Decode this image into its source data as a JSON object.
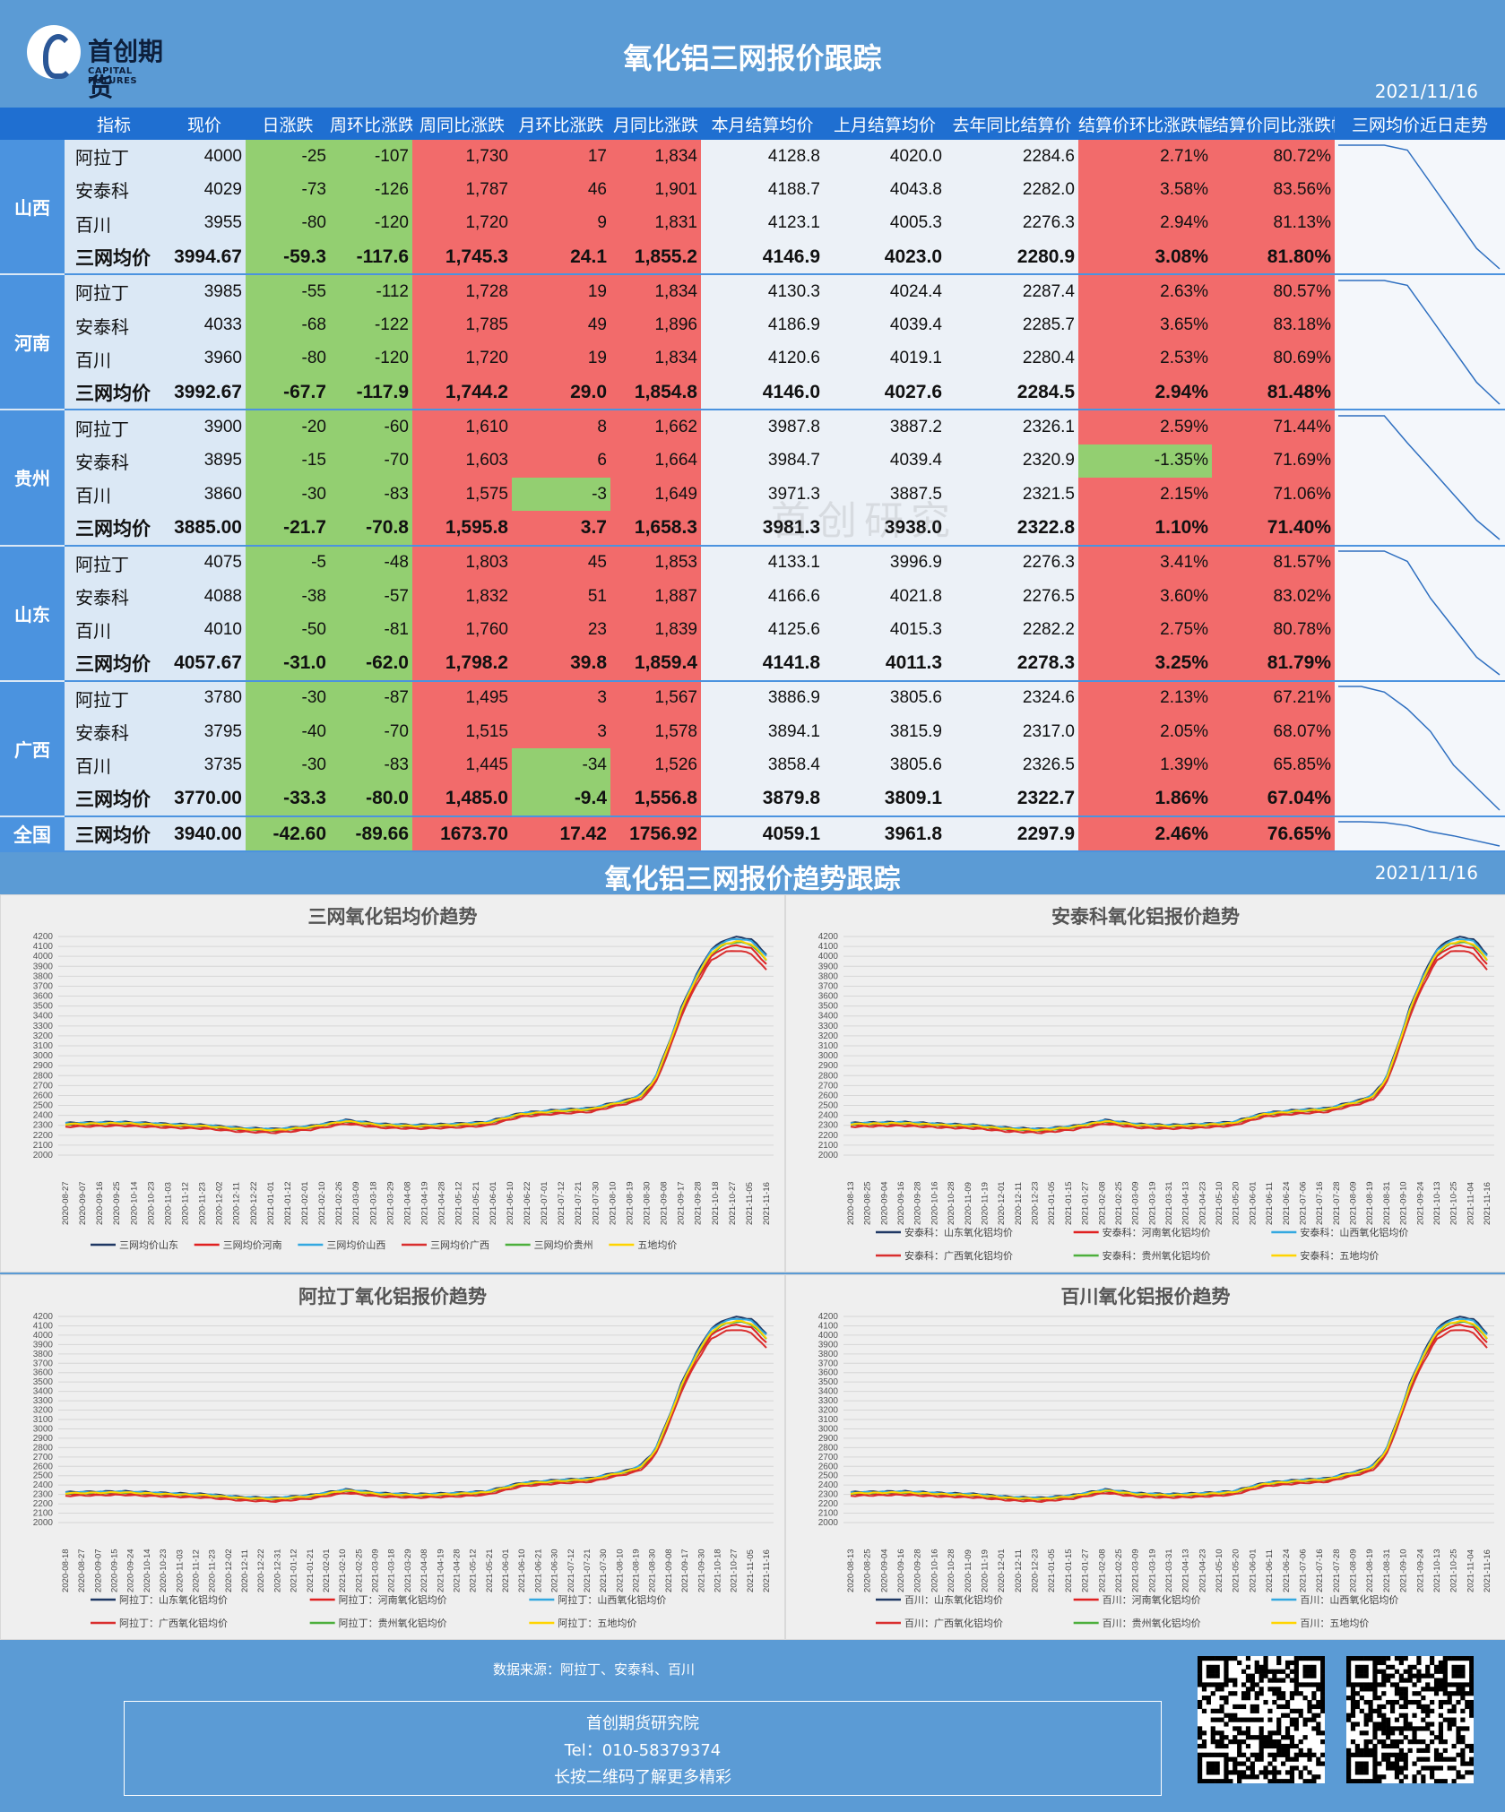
{
  "header": {
    "logo_cn": "首创期货",
    "logo_en": "CAPITAL FUTURES",
    "title": "氧化铝三网报价跟踪",
    "date": "2021/11/16"
  },
  "table": {
    "columns": [
      "指标",
      "现价",
      "日涨跌",
      "周环比涨跌",
      "周同比涨跌",
      "月环比涨跌",
      "月同比涨跌",
      "本月结算均价",
      "上月结算均价",
      "去年同比结算价",
      "结算价环比涨跌幅",
      "结算价同比涨跌幅",
      "三网均价近日走势"
    ],
    "provinces": [
      {
        "name": "山西",
        "rows": [
          [
            "阿拉丁",
            "4000",
            "-25",
            "-107",
            "1,730",
            "17",
            "1,834",
            "4128.8",
            "4020.0",
            "2284.6",
            "2.71%",
            "80.72%"
          ],
          [
            "安泰科",
            "4029",
            "-73",
            "-126",
            "1,787",
            "46",
            "1,901",
            "4188.7",
            "4043.8",
            "2282.0",
            "3.58%",
            "83.56%"
          ],
          [
            "百川",
            "3955",
            "-80",
            "-120",
            "1,720",
            "9",
            "1,831",
            "4123.1",
            "4005.3",
            "2276.3",
            "2.94%",
            "81.13%"
          ],
          [
            "三网均价",
            "3994.67",
            "-59.3",
            "-117.6",
            "1,745.3",
            "24.1",
            "1,855.2",
            "4146.9",
            "4023.0",
            "2280.9",
            "3.08%",
            "81.80%"
          ]
        ]
      },
      {
        "name": "河南",
        "rows": [
          [
            "阿拉丁",
            "3985",
            "-55",
            "-112",
            "1,728",
            "19",
            "1,834",
            "4130.3",
            "4024.4",
            "2287.4",
            "2.63%",
            "80.57%"
          ],
          [
            "安泰科",
            "4033",
            "-68",
            "-122",
            "1,785",
            "49",
            "1,896",
            "4186.9",
            "4039.4",
            "2285.7",
            "3.65%",
            "83.18%"
          ],
          [
            "百川",
            "3960",
            "-80",
            "-120",
            "1,720",
            "19",
            "1,834",
            "4120.6",
            "4019.1",
            "2280.4",
            "2.53%",
            "80.69%"
          ],
          [
            "三网均价",
            "3992.67",
            "-67.7",
            "-117.9",
            "1,744.2",
            "29.0",
            "1,854.8",
            "4146.0",
            "4027.6",
            "2284.5",
            "2.94%",
            "81.48%"
          ]
        ]
      },
      {
        "name": "贵州",
        "rows": [
          [
            "阿拉丁",
            "3900",
            "-20",
            "-60",
            "1,610",
            "8",
            "1,662",
            "3987.8",
            "3887.2",
            "2326.1",
            "2.59%",
            "71.44%"
          ],
          [
            "安泰科",
            "3895",
            "-15",
            "-70",
            "1,603",
            "6",
            "1,664",
            "3984.7",
            "4039.4",
            "2320.9",
            "-1.35%",
            "71.69%"
          ],
          [
            "百川",
            "3860",
            "-30",
            "-83",
            "1,575",
            "-3",
            "1,649",
            "3971.3",
            "3887.5",
            "2321.5",
            "2.15%",
            "71.06%"
          ],
          [
            "三网均价",
            "3885.00",
            "-21.7",
            "-70.8",
            "1,595.8",
            "3.7",
            "1,658.3",
            "3981.3",
            "3938.0",
            "2322.8",
            "1.10%",
            "71.40%"
          ]
        ]
      },
      {
        "name": "山东",
        "rows": [
          [
            "阿拉丁",
            "4075",
            "-5",
            "-48",
            "1,803",
            "45",
            "1,853",
            "4133.1",
            "3996.9",
            "2276.3",
            "3.41%",
            "81.57%"
          ],
          [
            "安泰科",
            "4088",
            "-38",
            "-57",
            "1,832",
            "51",
            "1,887",
            "4166.6",
            "4021.8",
            "2276.5",
            "3.60%",
            "83.02%"
          ],
          [
            "百川",
            "4010",
            "-50",
            "-81",
            "1,760",
            "23",
            "1,839",
            "4125.6",
            "4015.3",
            "2282.2",
            "2.75%",
            "80.78%"
          ],
          [
            "三网均价",
            "4057.67",
            "-31.0",
            "-62.0",
            "1,798.2",
            "39.8",
            "1,859.4",
            "4141.8",
            "4011.3",
            "2278.3",
            "3.25%",
            "81.79%"
          ]
        ]
      },
      {
        "name": "广西",
        "rows": [
          [
            "阿拉丁",
            "3780",
            "-30",
            "-87",
            "1,495",
            "3",
            "1,567",
            "3886.9",
            "3805.6",
            "2324.6",
            "2.13%",
            "67.21%"
          ],
          [
            "安泰科",
            "3795",
            "-40",
            "-70",
            "1,515",
            "3",
            "1,578",
            "3894.1",
            "3815.9",
            "2317.0",
            "2.05%",
            "68.07%"
          ],
          [
            "百川",
            "3735",
            "-30",
            "-83",
            "1,445",
            "-34",
            "1,526",
            "3858.4",
            "3805.6",
            "2326.5",
            "1.39%",
            "65.85%"
          ],
          [
            "三网均价",
            "3770.00",
            "-33.3",
            "-80.0",
            "1,485.0",
            "-9.4",
            "1,556.8",
            "3879.8",
            "3809.1",
            "2322.7",
            "1.86%",
            "67.04%"
          ]
        ]
      }
    ],
    "national": {
      "name": "全国",
      "row": [
        "三网均价",
        "3940.00",
        "-42.60",
        "-89.66",
        "1673.70",
        "17.42",
        "1756.92",
        "4059.1",
        "3961.8",
        "2297.9",
        "2.46%",
        "76.65%"
      ]
    },
    "watermark": "首创研究"
  },
  "trend_section": {
    "title": "氧化铝三网报价趋势跟踪",
    "date": "2021/11/16"
  },
  "chart_data": [
    {
      "type": "line",
      "title": "三网氧化铝均价趋势",
      "ylim": [
        2000,
        4200
      ],
      "yticks": [
        2000,
        2100,
        2200,
        2300,
        2400,
        2500,
        2600,
        2700,
        2800,
        2900,
        3000,
        3100,
        3200,
        3300,
        3400,
        3500,
        3600,
        3700,
        3800,
        3900,
        4000,
        4100,
        4200
      ],
      "x": [
        "2020-08-27",
        "2020-09-07",
        "2020-09-16",
        "2020-09-25",
        "2020-10-14",
        "2020-10-23",
        "2020-11-03",
        "2020-11-12",
        "2020-11-23",
        "2020-12-02",
        "2020-12-11",
        "2020-12-22",
        "2021-01-01",
        "2021-01-12",
        "2021-02-01",
        "2021-02-10",
        "2021-02-26",
        "2021-03-09",
        "2021-03-18",
        "2021-03-29",
        "2021-04-08",
        "2021-04-19",
        "2021-04-28",
        "2021-05-12",
        "2021-05-21",
        "2021-06-01",
        "2021-06-10",
        "2021-06-22",
        "2021-07-01",
        "2021-07-12",
        "2021-07-21",
        "2021-07-30",
        "2021-08-10",
        "2021-08-19",
        "2021-08-30",
        "2021-09-08",
        "2021-09-17",
        "2021-09-28",
        "2021-10-18",
        "2021-10-27",
        "2021-11-05",
        "2021-11-16"
      ],
      "series": [
        {
          "name": "三网均价山东",
          "color": "#1f3864"
        },
        {
          "name": "三网均价河南",
          "color": "#e02020"
        },
        {
          "name": "三网均价山西",
          "color": "#33a8e0"
        },
        {
          "name": "三网均价广西",
          "color": "#d92e2e"
        },
        {
          "name": "三网均价贵州",
          "color": "#4caf3c"
        },
        {
          "name": "五地均价",
          "color": "#ffd400"
        }
      ]
    },
    {
      "type": "line",
      "title": "安泰科氧化铝报价趋势",
      "ylim": [
        2000,
        4200
      ],
      "yticks": [
        2000,
        2100,
        2200,
        2300,
        2400,
        2500,
        2600,
        2700,
        2800,
        2900,
        3000,
        3100,
        3200,
        3300,
        3400,
        3500,
        3600,
        3700,
        3800,
        3900,
        4000,
        4100,
        4200
      ],
      "x": [
        "2020-08-13",
        "2020-08-25",
        "2020-09-04",
        "2020-09-16",
        "2020-09-28",
        "2020-10-16",
        "2020-10-28",
        "2020-11-09",
        "2020-11-19",
        "2020-12-01",
        "2020-12-11",
        "2020-12-23",
        "2021-01-05",
        "2021-01-15",
        "2021-01-27",
        "2021-02-08",
        "2021-02-25",
        "2021-03-09",
        "2021-03-19",
        "2021-03-31",
        "2021-04-13",
        "2021-04-23",
        "2021-05-10",
        "2021-05-20",
        "2021-06-01",
        "2021-06-11",
        "2021-06-24",
        "2021-07-06",
        "2021-07-16",
        "2021-07-28",
        "2021-08-09",
        "2021-08-19",
        "2021-08-31",
        "2021-09-10",
        "2021-09-24",
        "2021-10-13",
        "2021-10-25",
        "2021-11-04",
        "2021-11-16"
      ],
      "series": [
        {
          "name": "安泰科：山东氧化铝均价",
          "color": "#1f3864"
        },
        {
          "name": "安泰科：河南氧化铝均价",
          "color": "#e02020"
        },
        {
          "name": "安泰科：山西氧化铝均价",
          "color": "#33a8e0"
        },
        {
          "name": "安泰科：广西氧化铝均价",
          "color": "#d92e2e"
        },
        {
          "name": "安泰科：贵州氧化铝均价",
          "color": "#4caf3c"
        },
        {
          "name": "安泰科：五地均价",
          "color": "#ffd400"
        }
      ]
    },
    {
      "type": "line",
      "title": "阿拉丁氧化铝报价趋势",
      "ylim": [
        2000,
        4200
      ],
      "yticks": [
        2000,
        2100,
        2200,
        2300,
        2400,
        2500,
        2600,
        2700,
        2800,
        2900,
        3000,
        3100,
        3200,
        3300,
        3400,
        3500,
        3600,
        3700,
        3800,
        3900,
        4000,
        4100,
        4200
      ],
      "x": [
        "2020-08-18",
        "2020-08-27",
        "2020-09-07",
        "2020-09-15",
        "2020-09-24",
        "2020-10-14",
        "2020-10-23",
        "2020-11-03",
        "2020-11-12",
        "2020-11-23",
        "2020-12-02",
        "2020-12-11",
        "2020-12-22",
        "2020-12-31",
        "2021-01-12",
        "2021-01-21",
        "2021-02-01",
        "2021-02-10",
        "2021-02-25",
        "2021-03-09",
        "2021-03-18",
        "2021-03-29",
        "2021-04-08",
        "2021-04-19",
        "2021-04-28",
        "2021-05-12",
        "2021-05-21",
        "2021-06-01",
        "2021-06-10",
        "2021-06-21",
        "2021-06-30",
        "2021-07-12",
        "2021-07-21",
        "2021-07-30",
        "2021-08-10",
        "2021-08-19",
        "2021-08-30",
        "2021-09-08",
        "2021-09-17",
        "2021-09-30",
        "2021-10-18",
        "2021-10-27",
        "2021-11-05",
        "2021-11-16"
      ],
      "series": [
        {
          "name": "阿拉丁：山东氧化铝均价",
          "color": "#1f3864"
        },
        {
          "name": "阿拉丁：河南氧化铝均价",
          "color": "#e02020"
        },
        {
          "name": "阿拉丁：山西氧化铝均价",
          "color": "#33a8e0"
        },
        {
          "name": "阿拉丁：广西氧化铝均价",
          "color": "#d92e2e"
        },
        {
          "name": "阿拉丁：贵州氧化铝均价",
          "color": "#4caf3c"
        },
        {
          "name": "阿拉丁：五地均价",
          "color": "#ffd400"
        }
      ]
    },
    {
      "type": "line",
      "title": "百川氧化铝报价趋势",
      "ylim": [
        2000,
        4200
      ],
      "yticks": [
        2000,
        2100,
        2200,
        2300,
        2400,
        2500,
        2600,
        2700,
        2800,
        2900,
        3000,
        3100,
        3200,
        3300,
        3400,
        3500,
        3600,
        3700,
        3800,
        3900,
        4000,
        4100,
        4200
      ],
      "x": [
        "2020-08-13",
        "2020-08-25",
        "2020-09-04",
        "2020-09-16",
        "2020-09-28",
        "2020-10-16",
        "2020-10-28",
        "2020-11-09",
        "2020-11-19",
        "2020-12-01",
        "2020-12-11",
        "2020-12-23",
        "2021-01-05",
        "2021-01-15",
        "2021-01-27",
        "2021-02-08",
        "2021-02-25",
        "2021-03-09",
        "2021-03-19",
        "2021-03-31",
        "2021-04-13",
        "2021-04-23",
        "2021-05-10",
        "2021-05-20",
        "2021-06-01",
        "2021-06-11",
        "2021-06-24",
        "2021-07-06",
        "2021-07-16",
        "2021-07-28",
        "2021-08-09",
        "2021-08-19",
        "2021-08-31",
        "2021-09-10",
        "2021-09-24",
        "2021-10-13",
        "2021-10-25",
        "2021-11-04",
        "2021-11-16"
      ],
      "series": [
        {
          "name": "百川：山东氧化铝均价",
          "color": "#1f3864"
        },
        {
          "name": "百川：河南氧化铝均价",
          "color": "#e02020"
        },
        {
          "name": "百川：山西氧化铝均价",
          "color": "#33a8e0"
        },
        {
          "name": "百川：广西氧化铝均价",
          "color": "#d92e2e"
        },
        {
          "name": "百川：贵州氧化铝均价",
          "color": "#4caf3c"
        },
        {
          "name": "百川：五地均价",
          "color": "#ffd400"
        }
      ]
    }
  ],
  "trend_shape": {
    "fractions": [
      0,
      0.08,
      0.15,
      0.2,
      0.25,
      0.3,
      0.35,
      0.4,
      0.45,
      0.5,
      0.55,
      0.6,
      0.65,
      0.7,
      0.75,
      0.78,
      0.8,
      0.82,
      0.84,
      0.86,
      0.88,
      0.9,
      0.92,
      0.94,
      0.96,
      0.98,
      1.0
    ],
    "values": [
      2320,
      2330,
      2310,
      2300,
      2270,
      2260,
      2290,
      2350,
      2310,
      2300,
      2310,
      2330,
      2420,
      2450,
      2470,
      2520,
      2550,
      2600,
      2750,
      3100,
      3500,
      3800,
      4050,
      4150,
      4180,
      4150,
      4000
    ],
    "series_offsets": [
      20,
      -80,
      0,
      -140,
      -40,
      -30
    ]
  },
  "sparkline_values": [
    [
      4146,
      4146,
      4146,
      4140,
      4100,
      4060,
      4020,
      3995
    ],
    [
      4146,
      4146,
      4146,
      4140,
      4100,
      4060,
      4020,
      3993
    ],
    [
      3981,
      3981,
      3981,
      3960,
      3940,
      3920,
      3900,
      3885
    ],
    [
      4142,
      4142,
      4142,
      4135,
      4110,
      4090,
      4070,
      4058
    ],
    [
      3880,
      3880,
      3875,
      3860,
      3840,
      3810,
      3790,
      3770
    ],
    [
      4059,
      4059,
      4055,
      4040,
      4010,
      3990,
      3965,
      3940
    ]
  ],
  "footer": {
    "source": "数据来源：阿拉丁、安泰科、百川",
    "org": "首创期货研究院",
    "tel": "Tel：010-58379374",
    "tip": "长按二维码了解更多精彩"
  }
}
